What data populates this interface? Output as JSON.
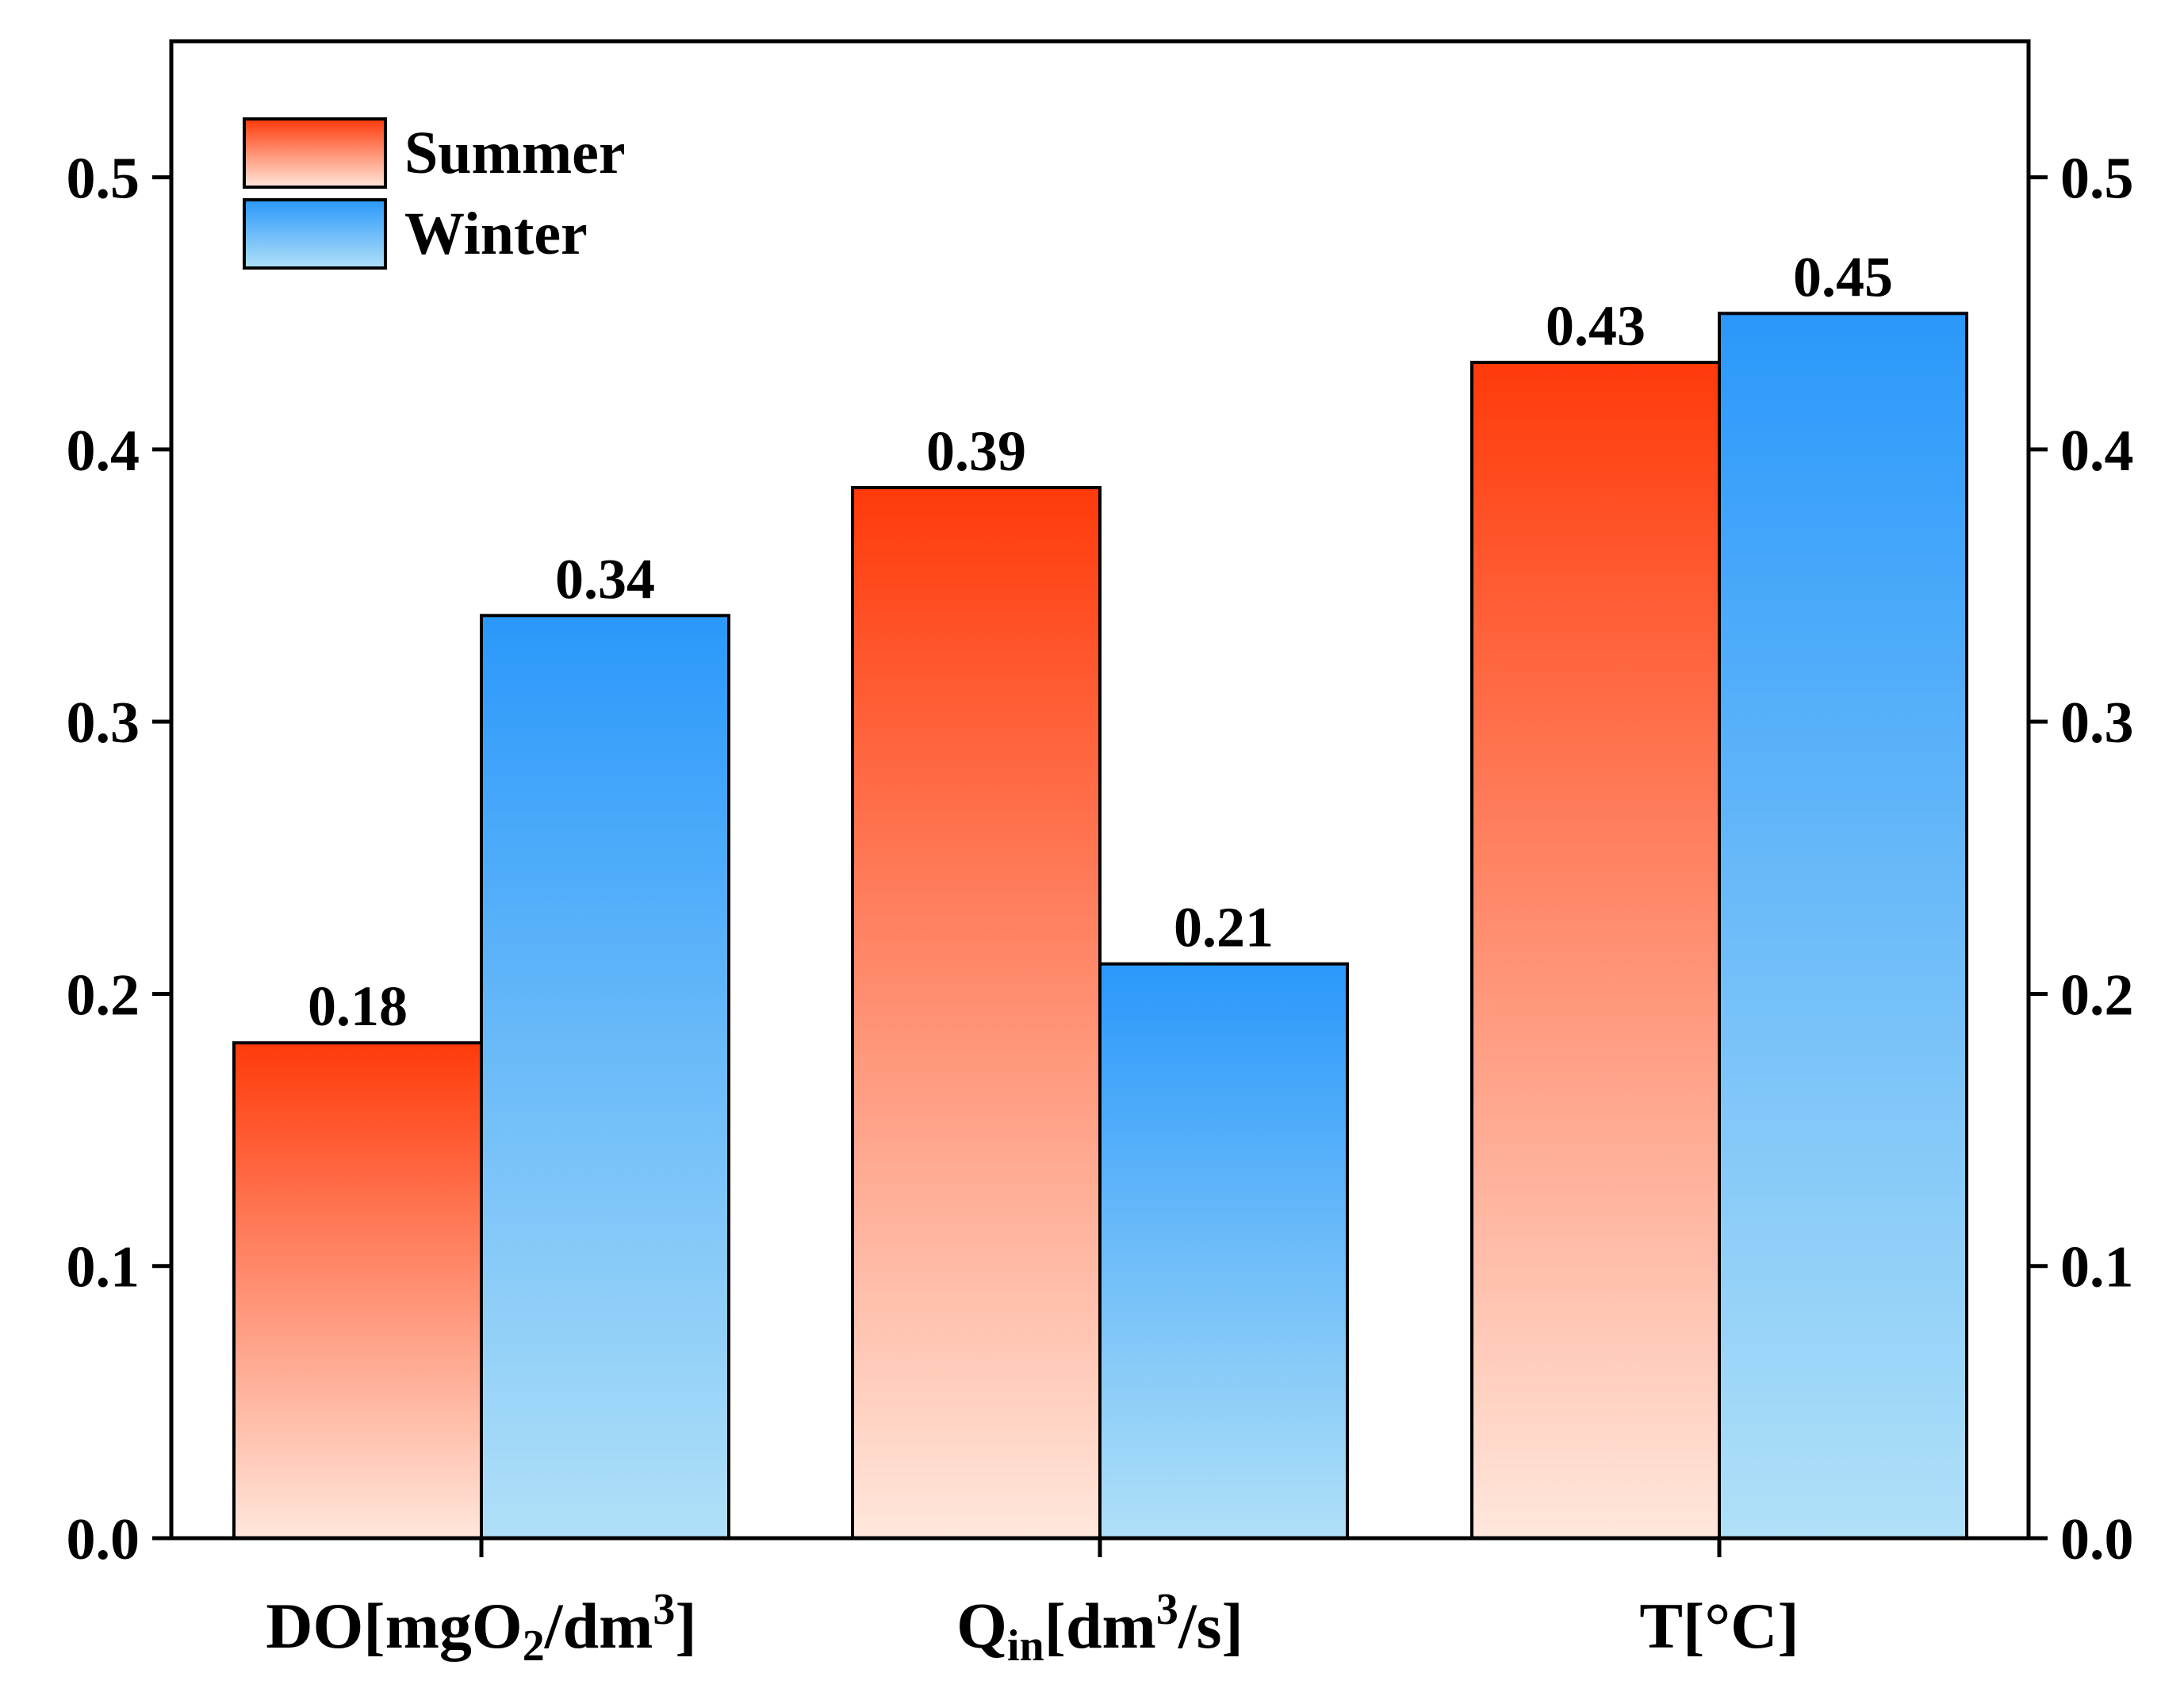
{
  "chart_data": {
    "type": "bar",
    "title": "",
    "xlabel": "",
    "ylabel": "",
    "ylim": [
      0,
      0.55
    ],
    "yticks": [
      0.0,
      0.1,
      0.2,
      0.3,
      0.4,
      0.5
    ],
    "ytick_labels": [
      "0.0",
      "0.1",
      "0.2",
      "0.3",
      "0.4",
      "0.5"
    ],
    "secondary_axis": "right (mirrors left)",
    "legend_position": "top-left",
    "categories": [
      {
        "id": "do",
        "base": "DO[mgO",
        "sub": "2",
        "mid": "/dm",
        "sup": "3",
        "tail": "]"
      },
      {
        "id": "qin",
        "base": "Q",
        "sub": "in",
        "mid": "[dm",
        "sup": "3",
        "tail": "/s]"
      },
      {
        "id": "t",
        "base": "T[°C]",
        "sub": "",
        "mid": "",
        "sup": "",
        "tail": ""
      }
    ],
    "series": [
      {
        "name": "Summer",
        "values": [
          0.182,
          0.386,
          0.432
        ],
        "labels": [
          "0.18",
          "0.39",
          "0.43"
        ],
        "color_top": "#ff3a0a",
        "color_bottom": "#ffe7dc"
      },
      {
        "name": "Winter",
        "values": [
          0.339,
          0.211,
          0.45
        ],
        "labels": [
          "0.34",
          "0.21",
          "0.45"
        ],
        "color_top": "#2a98fa",
        "color_bottom": "#b0e0f8"
      }
    ]
  }
}
